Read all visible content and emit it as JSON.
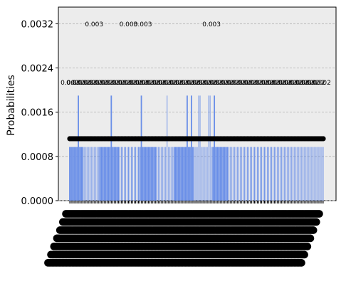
{
  "chart_data": {
    "type": "bar",
    "title": "",
    "xlabel": "",
    "ylabel": "Probabilities",
    "ylim": [
      0,
      0.0035
    ],
    "yticks": [
      "0.0000",
      "0.0008",
      "0.0016",
      "0.0024",
      "0.0032"
    ],
    "ytick_values": [
      0,
      0.0008,
      0.0016,
      0.0024,
      0.0032
    ],
    "grid": "horizontal dashed",
    "bar_color": "#6a8fe8",
    "background_color": "#ececec",
    "bar_count": 178,
    "base_value": 0.00097,
    "values_note_tall": [
      {
        "index": 6,
        "value": 0.0019
      },
      {
        "index": 29,
        "value": 0.0019
      },
      {
        "index": 50,
        "value": 0.0019
      },
      {
        "index": 68,
        "value": 0.0019
      },
      {
        "index": 82,
        "value": 0.0019
      },
      {
        "index": 85,
        "value": 0.0019
      },
      {
        "index": 90,
        "value": 0.0019
      },
      {
        "index": 91,
        "value": 0.0019
      },
      {
        "index": 97,
        "value": 0.0019
      },
      {
        "index": 98,
        "value": 0.0019
      },
      {
        "index": 101,
        "value": 0.0019
      }
    ],
    "group_spans": [
      [
        0,
        9
      ],
      [
        21,
        34
      ],
      [
        49,
        60
      ],
      [
        73,
        86
      ],
      [
        100,
        110
      ]
    ],
    "annotations_top": [
      {
        "text": "0.003",
        "x_index": 17
      },
      {
        "text": "0.003",
        "x_index": 41
      },
      {
        "text": "0.003",
        "x_index": 51
      },
      {
        "text": "0.003",
        "x_index": 99
      }
    ],
    "label_row_text": "0.0",
    "label_row_common": "0.002"
  }
}
